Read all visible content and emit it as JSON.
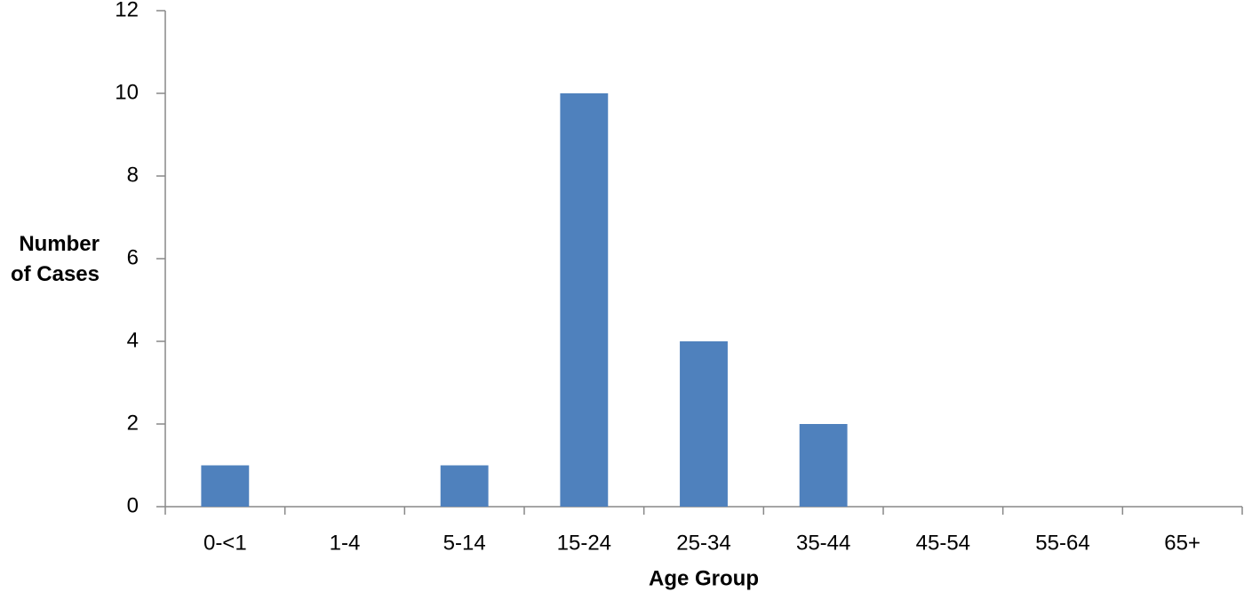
{
  "chart_data": {
    "type": "bar",
    "x_label": "Age Group",
    "y_label": "Number of Cases",
    "categories": [
      "0-<1",
      "1-4",
      "5-14",
      "15-24",
      "25-34",
      "35-44",
      "45-54",
      "55-64",
      "65+"
    ],
    "values": [
      1,
      0,
      1,
      10,
      4,
      2,
      0,
      0,
      0
    ],
    "color": "#4f81bd",
    "ylim": [
      0,
      12
    ],
    "yticks": [
      0,
      2,
      4,
      6,
      8,
      10,
      12
    ],
    "grid": false
  }
}
